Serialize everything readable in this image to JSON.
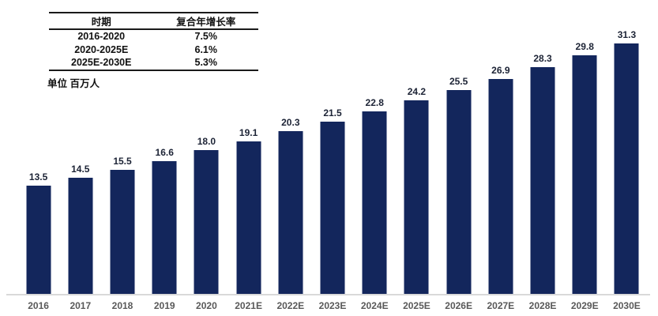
{
  "cagr_table": {
    "col_headers": [
      "时期",
      "复合年增长率"
    ],
    "rows": [
      {
        "period": "2016-2020",
        "cagr": "7.5%"
      },
      {
        "period": "2020-2025E",
        "cagr": "6.1%"
      },
      {
        "period": "2025E-2030E",
        "cagr": "5.3%"
      }
    ]
  },
  "chart_data": {
    "type": "bar",
    "unit_note": "单位 百万人",
    "categories": [
      "2016",
      "2017",
      "2018",
      "2019",
      "2020",
      "2021E",
      "2022E",
      "2023E",
      "2024E",
      "2025E",
      "2026E",
      "2027E",
      "2028E",
      "2029E",
      "2030E"
    ],
    "values": [
      13.5,
      14.5,
      15.5,
      16.6,
      18.0,
      19.1,
      20.3,
      21.5,
      22.8,
      24.2,
      25.5,
      26.9,
      28.3,
      29.8,
      31.3
    ],
    "data_labels": [
      "13.5",
      "14.5",
      "15.5",
      "16.6",
      "18.0",
      "19.1",
      "20.3",
      "21.5",
      "22.8",
      "24.2",
      "25.5",
      "26.9",
      "28.3",
      "29.8",
      "31.3"
    ],
    "title": "",
    "xlabel": "",
    "ylabel": "百万人",
    "ylim": [
      0,
      31.5
    ],
    "grid": false,
    "legend_position": "none",
    "data_labels_shown": true,
    "bar_color": "#13265c",
    "value_label_color": "#1c2335",
    "tick_label_color": "#595959",
    "axis_line_color": "#d9d9d9"
  }
}
